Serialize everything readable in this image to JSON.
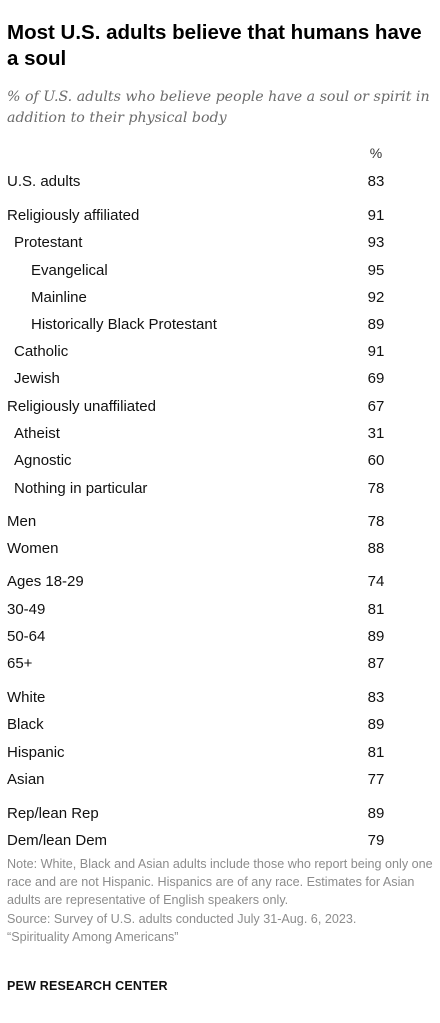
{
  "header": {
    "title": "Most U.S. adults believe that humans have a soul",
    "subtitle": "% of U.S. adults who believe people have a soul or spirit in addition to their physical body"
  },
  "chart_data": {
    "type": "table",
    "column_header": "%",
    "rows": [
      {
        "label": "U.S. adults",
        "value": 83,
        "level": 0
      },
      {
        "label": "Religiously affiliated",
        "value": 91,
        "level": 0
      },
      {
        "label": "Protestant",
        "value": 93,
        "level": 1
      },
      {
        "label": "Evangelical",
        "value": 95,
        "level": 2
      },
      {
        "label": "Mainline",
        "value": 92,
        "level": 2
      },
      {
        "label": "Historically Black Protestant",
        "value": 89,
        "level": 2
      },
      {
        "label": "Catholic",
        "value": 91,
        "level": 1
      },
      {
        "label": "Jewish",
        "value": 69,
        "level": 1
      },
      {
        "label": "Religiously unaffiliated",
        "value": 67,
        "level": 0
      },
      {
        "label": "Atheist",
        "value": 31,
        "level": 1
      },
      {
        "label": "Agnostic",
        "value": 60,
        "level": 1
      },
      {
        "label": "Nothing in particular",
        "value": 78,
        "level": 1
      },
      {
        "label": "Men",
        "value": 78,
        "level": 0
      },
      {
        "label": "Women",
        "value": 88,
        "level": 0
      },
      {
        "label": "Ages 18-29",
        "value": 74,
        "level": 0
      },
      {
        "label": "30-49",
        "value": 81,
        "level": 0
      },
      {
        "label": "50-64",
        "value": 89,
        "level": 0
      },
      {
        "label": "65+",
        "value": 87,
        "level": 0
      },
      {
        "label": "White",
        "value": 83,
        "level": 0
      },
      {
        "label": "Black",
        "value": 89,
        "level": 0
      },
      {
        "label": "Hispanic",
        "value": 81,
        "level": 0
      },
      {
        "label": "Asian",
        "value": 77,
        "level": 0
      },
      {
        "label": "Rep/lean Rep",
        "value": 89,
        "level": 0
      },
      {
        "label": "Dem/lean Dem",
        "value": 79,
        "level": 0
      }
    ]
  },
  "footer": {
    "note": "Note: White, Black and Asian adults include those who report being only one race and are not Hispanic. Hispanics are of any race. Estimates for Asian adults are representative of English speakers only.",
    "source": "Source: Survey of U.S. adults conducted July 31-Aug. 6, 2023.",
    "report": "“Spirituality Among Americans”",
    "brand": "PEW RESEARCH CENTER"
  }
}
